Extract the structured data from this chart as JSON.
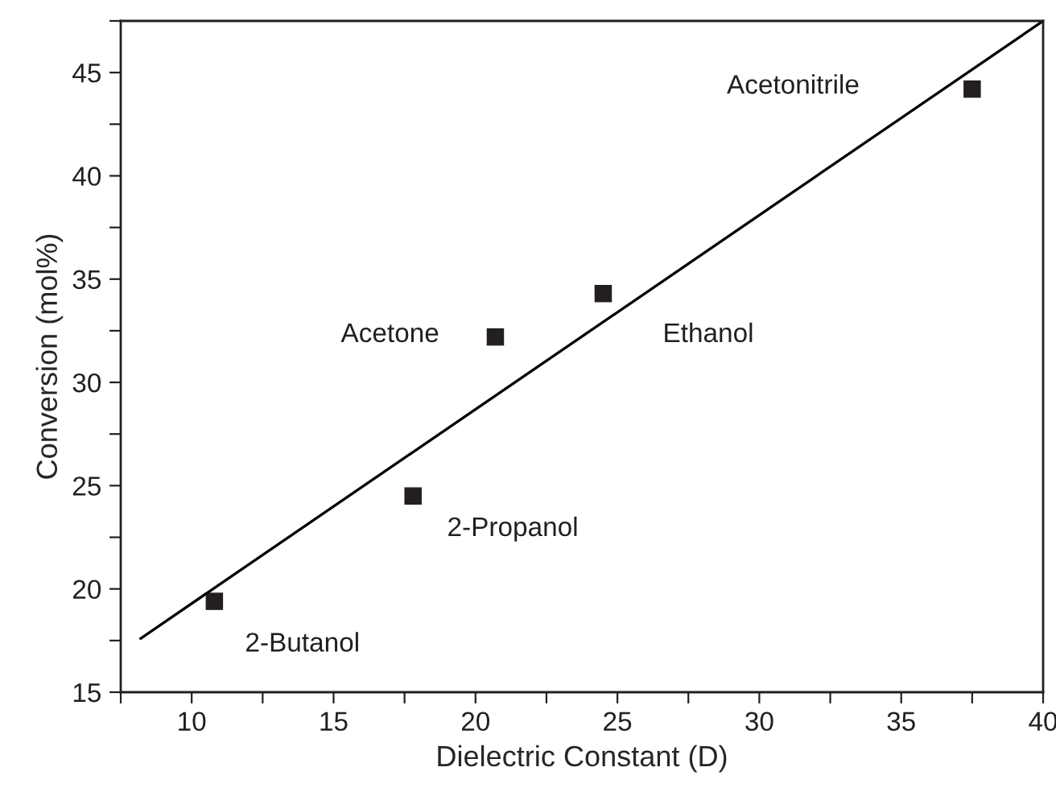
{
  "chart_data": {
    "type": "scatter",
    "xlabel": "Dielectric Constant (D)",
    "ylabel": "Conversion (mol%)",
    "xlim": [
      7.5,
      40
    ],
    "ylim": [
      15,
      47.5
    ],
    "xticks": [
      {
        "value": 7.5,
        "label": null
      },
      10,
      {
        "value": 12.5,
        "label": null
      },
      15,
      {
        "value": 17.5,
        "label": null
      },
      20,
      {
        "value": 22.5,
        "label": null
      },
      25,
      {
        "value": 27.5,
        "label": null
      },
      30,
      {
        "value": 32.5,
        "label": null
      },
      35,
      {
        "value": 37.5,
        "label": null
      },
      40
    ],
    "yticks": [
      15,
      {
        "value": 17.5,
        "label": null
      },
      20,
      {
        "value": 22.5,
        "label": null
      },
      25,
      {
        "value": 27.5,
        "label": null
      },
      30,
      {
        "value": 32.5,
        "label": null
      },
      35,
      {
        "value": 37.5,
        "label": null
      },
      40,
      {
        "value": 42.5,
        "label": null
      },
      45,
      {
        "value": 47.5,
        "label": null
      }
    ],
    "grid": false,
    "legend": false,
    "series": [
      {
        "type": "scatter",
        "marker": "square",
        "color": "#231f20",
        "x": [
          10.8,
          17.8,
          20.7,
          24.5,
          37.5
        ],
        "values": [
          19.4,
          24.5,
          32.2,
          34.3,
          44.2
        ]
      },
      {
        "type": "line",
        "marker": "none",
        "line_style": "solid",
        "color": "#000000",
        "x": [
          8.2,
          40
        ],
        "values": [
          17.6,
          47.5
        ]
      }
    ],
    "annotations": [
      "2-Butanol",
      "2-Propanol",
      "Acetone",
      "Ethanol",
      "Acetonitrile"
    ]
  }
}
